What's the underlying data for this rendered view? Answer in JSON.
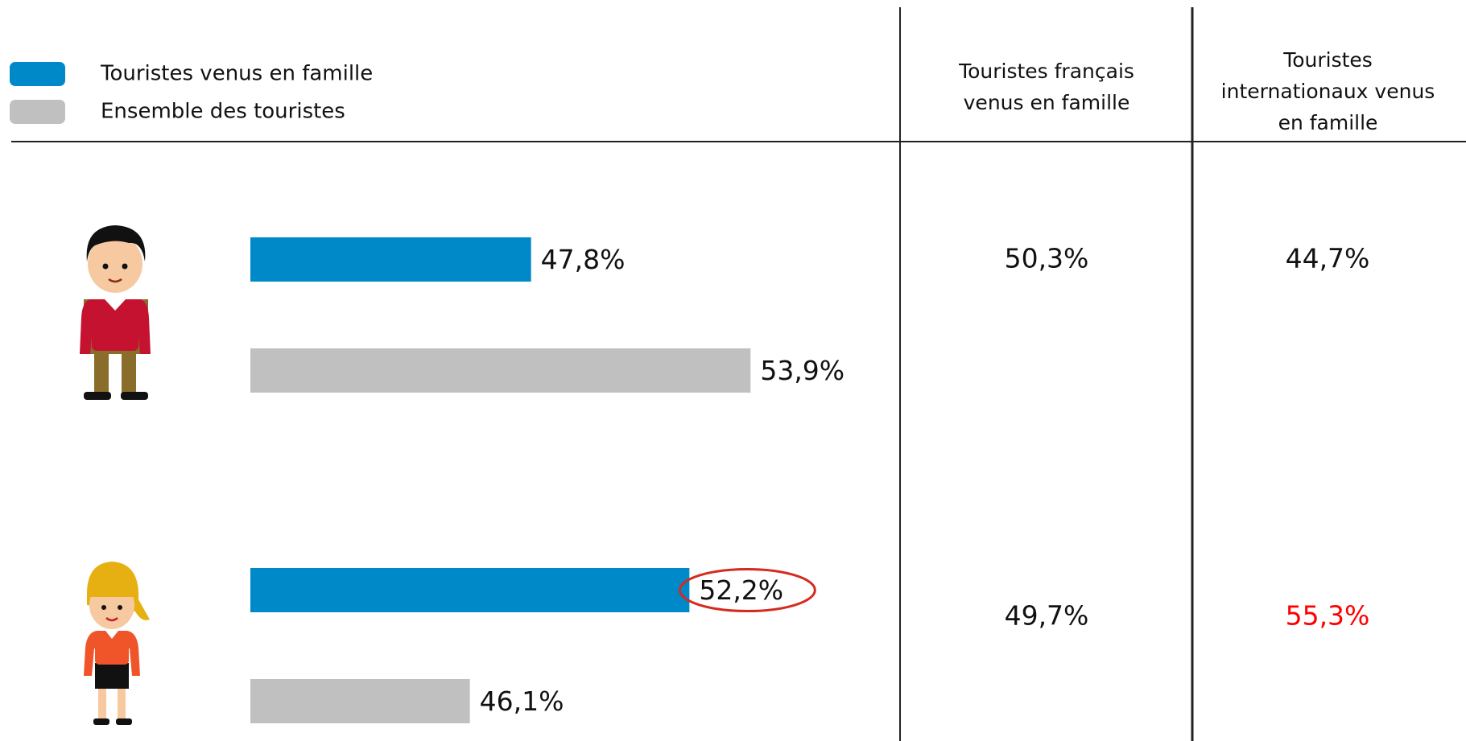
{
  "chart_data": {
    "type": "bar",
    "orientation": "horizontal",
    "categories": [
      null,
      null
    ],
    "xlim": [
      40,
      56
    ],
    "series": [
      {
        "name": "Touristes venus en famille",
        "color": "#0089c9",
        "values": [
          47.8,
          52.2
        ],
        "value_labels": [
          "47,8%",
          "52,2%"
        ],
        "circled_index": 1,
        "circle_color": "#d52b1e"
      },
      {
        "name": "Ensemble des touristes",
        "color": "#c0c0c0",
        "values": [
          53.9,
          46.1
        ],
        "value_labels": [
          "53,9%",
          "46,1%"
        ]
      }
    ],
    "table_columns": [
      {
        "name": "Touristes français venus en famille",
        "values": [
          50.3,
          49.7
        ],
        "value_labels": [
          "50,3%",
          "49,7%"
        ],
        "colors": [
          "#111111",
          "#111111"
        ]
      },
      {
        "name": "Touristes internationaux venus en famille",
        "values": [
          44.7,
          55.3
        ],
        "value_labels": [
          "44,7%",
          "55,3%"
        ],
        "colors": [
          "#111111",
          "#ff0000"
        ]
      }
    ]
  }
}
